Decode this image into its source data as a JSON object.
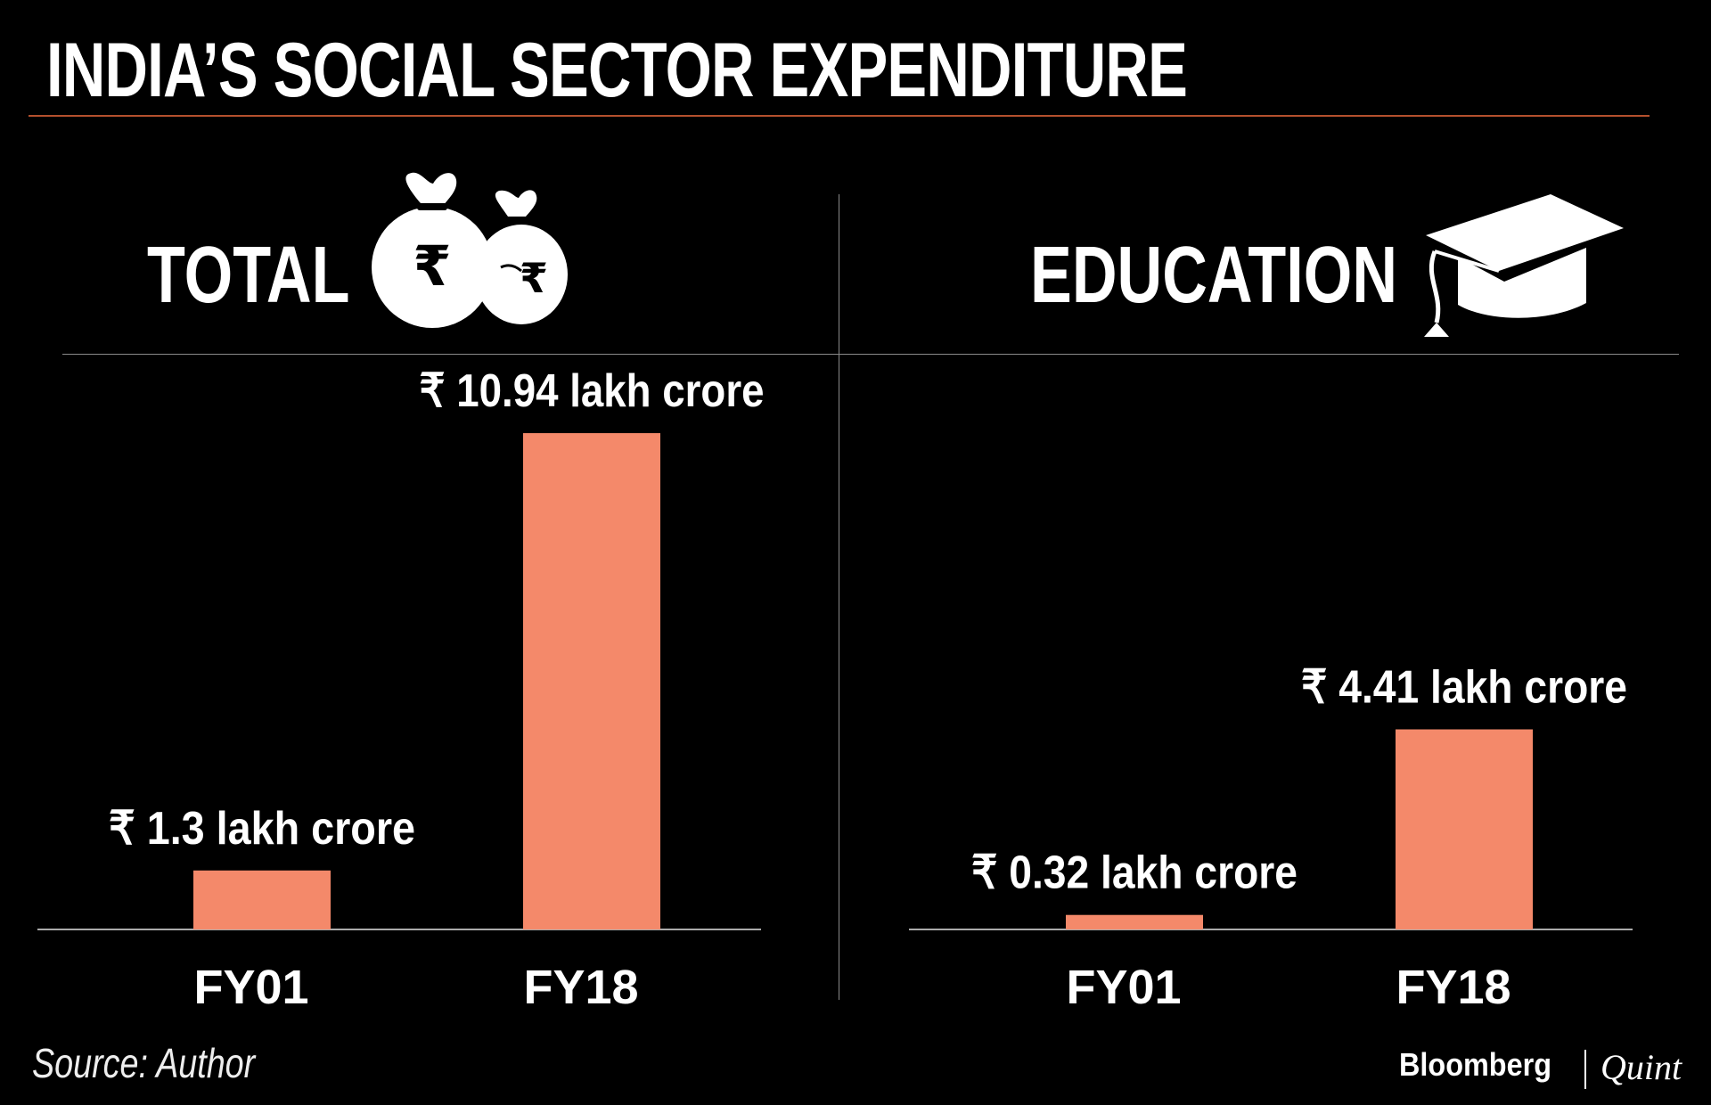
{
  "title": "INDIA’S SOCIAL SECTOR EXPENDITURE",
  "source": "Source: Author",
  "brand": {
    "primary": "Bloomberg",
    "secondary": "Quint"
  },
  "icons": {
    "total": "money-bags-rupee-icon",
    "education": "graduation-cap-icon"
  },
  "colors": {
    "bar": "#f4896a",
    "background": "#000000",
    "accent_rule": "#b4502d"
  },
  "chart_data": [
    {
      "type": "bar",
      "title": "TOTAL",
      "categories": [
        "FY01",
        "FY18"
      ],
      "values": [
        1.3,
        10.94
      ],
      "value_labels": [
        "₹ 1.3 lakh crore",
        "₹ 10.94 lakh crore"
      ],
      "unit": "lakh crore",
      "ylim": [
        0,
        11
      ],
      "grid": false
    },
    {
      "type": "bar",
      "title": "EDUCATION",
      "categories": [
        "FY01",
        "FY18"
      ],
      "values": [
        0.32,
        4.41
      ],
      "value_labels": [
        "₹ 0.32 lakh crore",
        "₹ 4.41 lakh crore"
      ],
      "unit": "lakh crore",
      "ylim": [
        0,
        11
      ],
      "grid": false
    }
  ]
}
